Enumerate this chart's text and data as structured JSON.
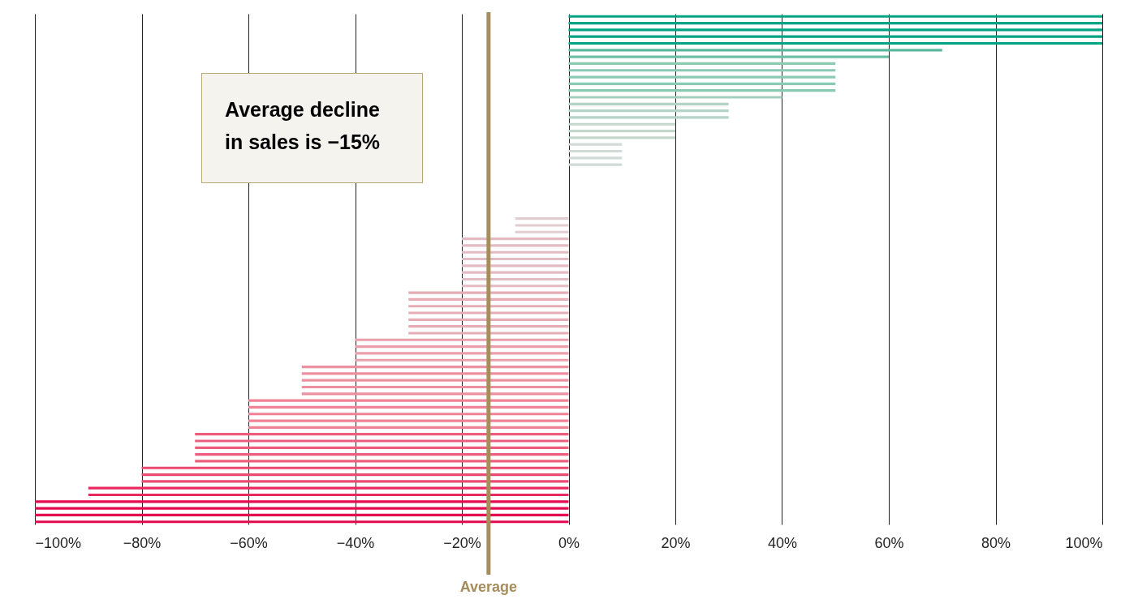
{
  "chart_data": {
    "type": "bar",
    "orientation": "horizontal",
    "categories": [
      null,
      null,
      null,
      null,
      null,
      null,
      null,
      null,
      null,
      null,
      null,
      null,
      null,
      null,
      null,
      null,
      null,
      null,
      null,
      null,
      null,
      null,
      null,
      null,
      null,
      null,
      null,
      null,
      null,
      null,
      null,
      null,
      null,
      null,
      null,
      null,
      null,
      null,
      null,
      null,
      null,
      null,
      null,
      null,
      null,
      null,
      null,
      null,
      null,
      null,
      null,
      null,
      null,
      null,
      null,
      null,
      null,
      null,
      null,
      null,
      null,
      null,
      null,
      null,
      null,
      null,
      null,
      null,
      null,
      null,
      null,
      null,
      null,
      null,
      null,
      null
    ],
    "values": [
      100,
      100,
      100,
      100,
      100,
      70,
      60,
      50,
      50,
      50,
      50,
      50,
      40,
      30,
      30,
      30,
      20,
      20,
      20,
      10,
      10,
      10,
      10,
      0,
      0,
      0,
      0,
      0,
      0,
      0,
      -10,
      -10,
      -10,
      -20,
      -20,
      -20,
      -20,
      -20,
      -20,
      -20,
      -20,
      -30,
      -30,
      -30,
      -30,
      -30,
      -30,
      -30,
      -40,
      -40,
      -40,
      -40,
      -50,
      -50,
      -50,
      -50,
      -50,
      -60,
      -60,
      -60,
      -60,
      -60,
      -70,
      -70,
      -70,
      -70,
      -70,
      -80,
      -80,
      -80,
      -90,
      -90,
      -100,
      -100,
      -100,
      -100
    ],
    "colors": [
      "#00a383",
      "#00a383",
      "#00a383",
      "#00a383",
      "#00a383",
      "#5bb89e",
      "#6dbfa5",
      "#8cc9b3",
      "#8cc9b3",
      "#8cc9b3",
      "#8cc9b3",
      "#8cc9b3",
      "#a3cfbe",
      "#b5d4c8",
      "#b5d4c8",
      "#b5d4c8",
      "#c4d7cf",
      "#c4d7cf",
      "#c4d7cf",
      "#d2dad6",
      "#d2dad6",
      "#d2dad6",
      "#d2dad6",
      "#dcdcdc",
      "#dcdcdc",
      "#dcdcdc",
      "#dcdcdc",
      "#dcdcdc",
      "#dcdcdc",
      "#dcdcdc",
      "#e2cdd1",
      "#e2cdd1",
      "#e2cdd1",
      "#e3bcc3",
      "#e3bcc3",
      "#e3bcc3",
      "#e3bcc3",
      "#e3bcc3",
      "#e3bcc3",
      "#e3bcc3",
      "#e3bcc3",
      "#e6adb6",
      "#e6adb6",
      "#e6adb6",
      "#e6adb6",
      "#e6adb6",
      "#e6adb6",
      "#e6adb6",
      "#ea9fab",
      "#ea9fab",
      "#ea9fab",
      "#ea9fab",
      "#ec8f9e",
      "#ec8f9e",
      "#ec8f9e",
      "#ec8f9e",
      "#ec8f9e",
      "#ef8294",
      "#ef8294",
      "#ef8294",
      "#ef8294",
      "#ef8294",
      "#ec5e7c",
      "#ec5e7c",
      "#ec5e7c",
      "#ec5e7c",
      "#ec5e7c",
      "#ea4a6f",
      "#ea4a6f",
      "#ea4a6f",
      "#e8285e",
      "#e8285e",
      "#e30b4f",
      "#e30b4f",
      "#e30b4f",
      "#e30b4f"
    ],
    "xlim": [
      -100,
      100
    ],
    "xticks": [
      {
        "value": -100,
        "label": "−100%"
      },
      {
        "value": -80,
        "label": "−80%"
      },
      {
        "value": -60,
        "label": "−60%"
      },
      {
        "value": -40,
        "label": "−40%"
      },
      {
        "value": -20,
        "label": "−20%"
      },
      {
        "value": 0,
        "label": "0%"
      },
      {
        "value": 20,
        "label": "20%"
      },
      {
        "value": 40,
        "label": "40%"
      },
      {
        "value": 60,
        "label": "60%"
      },
      {
        "value": 80,
        "label": "80%"
      },
      {
        "value": 100,
        "label": "100%"
      }
    ],
    "grid": "x",
    "tick_labels": "x",
    "ref_lines": [
      {
        "axis": "x",
        "value": -15,
        "label": "Average",
        "color": "#a58d5c"
      }
    ],
    "annotations": [
      "Average decline in sales is −15%"
    ]
  }
}
